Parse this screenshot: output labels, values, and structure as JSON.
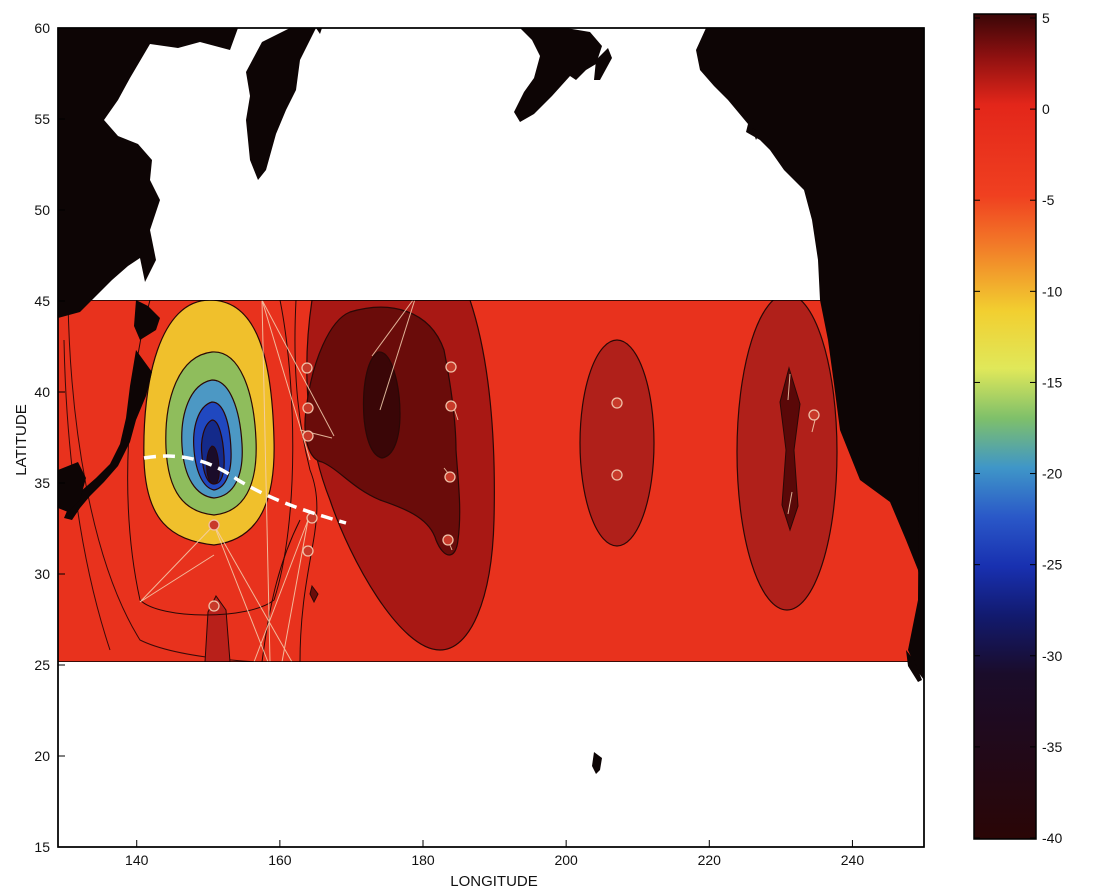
{
  "map": {
    "x_axis_label": "LONGITUDE",
    "y_axis_label": "LATITUDE",
    "x_ticks": [
      "140",
      "160",
      "180",
      "200",
      "220",
      "240"
    ],
    "y_ticks": [
      "60",
      "55",
      "50",
      "45",
      "40",
      "35",
      "30",
      "25",
      "20",
      "15"
    ],
    "x_range": [
      129,
      250
    ],
    "y_range": [
      15,
      60
    ],
    "data_region": {
      "lon": [
        129,
        250
      ],
      "lat": [
        25.5,
        45
      ]
    },
    "colorbar": {
      "ticks": [
        "5",
        "0",
        "-5",
        "-10",
        "-15",
        "-20",
        "-25",
        "-30",
        "-35",
        "-40"
      ],
      "range": [
        -40,
        5
      ]
    },
    "colors": {
      "land": "#0d0505",
      "field_background": "#e8321d",
      "dark_red": "#9e1410",
      "front_line": "#ffffff"
    },
    "features": [
      "land-mask",
      "filled-contours",
      "observation-stations",
      "white-dashed-front",
      "track-lines"
    ]
  }
}
